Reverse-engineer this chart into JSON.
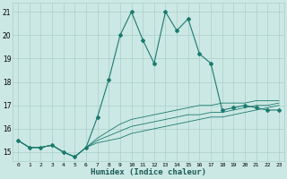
{
  "xlabel": "Humidex (Indice chaleur)",
  "x": [
    0,
    1,
    2,
    3,
    4,
    5,
    6,
    7,
    8,
    9,
    10,
    11,
    12,
    13,
    14,
    15,
    16,
    17,
    18,
    19,
    20,
    21,
    22,
    23
  ],
  "y_main": [
    15.5,
    15.2,
    15.2,
    15.3,
    15.0,
    14.8,
    15.2,
    16.5,
    18.1,
    20.0,
    21.0,
    19.8,
    18.8,
    21.0,
    20.2,
    20.7,
    19.2,
    18.8,
    16.8,
    16.9,
    17.0,
    16.9,
    16.8,
    16.8
  ],
  "y_low": [
    15.5,
    15.2,
    15.2,
    15.3,
    15.0,
    14.8,
    15.2,
    15.4,
    15.5,
    15.6,
    15.8,
    15.9,
    16.0,
    16.1,
    16.2,
    16.3,
    16.4,
    16.5,
    16.5,
    16.6,
    16.7,
    16.8,
    16.9,
    17.0
  ],
  "y_mid": [
    15.5,
    15.2,
    15.2,
    15.3,
    15.0,
    14.8,
    15.2,
    15.5,
    15.7,
    15.9,
    16.1,
    16.2,
    16.3,
    16.4,
    16.5,
    16.6,
    16.6,
    16.7,
    16.7,
    16.8,
    16.9,
    17.0,
    17.0,
    17.1
  ],
  "y_high": [
    15.5,
    15.2,
    15.2,
    15.3,
    15.0,
    14.8,
    15.2,
    15.6,
    15.9,
    16.2,
    16.4,
    16.5,
    16.6,
    16.7,
    16.8,
    16.9,
    17.0,
    17.0,
    17.1,
    17.1,
    17.1,
    17.2,
    17.2,
    17.2
  ],
  "line_color": "#1a7a6e",
  "bg_color": "#cce8e4",
  "grid_color": "#aacfca",
  "ylim": [
    14.6,
    21.4
  ],
  "yticks": [
    15,
    16,
    17,
    18,
    19,
    20,
    21
  ],
  "xlim": [
    -0.5,
    23.5
  ],
  "xtick_labels": [
    "0",
    "1",
    "2",
    "3",
    "4",
    "5",
    "6",
    "7",
    "8",
    "9",
    "1011",
    "1213",
    "1415",
    "1617",
    "1819",
    "2021",
    "2223"
  ]
}
